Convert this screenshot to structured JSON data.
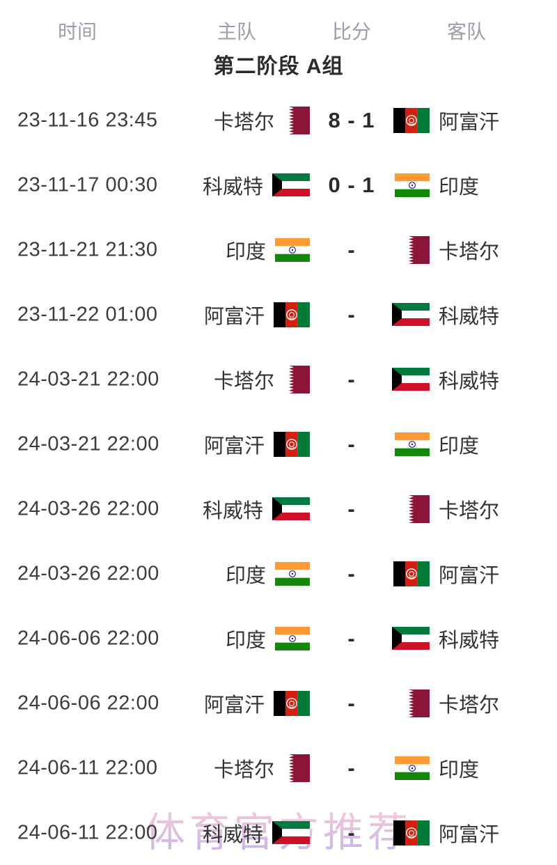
{
  "table": {
    "headers": [
      {
        "id": "time",
        "label": "时间"
      },
      {
        "id": "home",
        "label": "主队"
      },
      {
        "id": "score",
        "label": "比分"
      },
      {
        "id": "away",
        "label": "客队"
      }
    ],
    "section_title": "第二阶段 A组",
    "rows": [
      {
        "time": "23-11-16 23:45",
        "home": "卡塔尔",
        "home_flag": "qatar",
        "score": "8 - 1",
        "away": "阿富汗",
        "away_flag": "afghanistan"
      },
      {
        "time": "23-11-17 00:30",
        "home": "科威特",
        "home_flag": "kuwait",
        "score": "0 - 1",
        "away": "印度",
        "away_flag": "india"
      },
      {
        "time": "23-11-21 21:30",
        "home": "印度",
        "home_flag": "india",
        "score": "-",
        "away": "卡塔尔",
        "away_flag": "qatar"
      },
      {
        "time": "23-11-22 01:00",
        "home": "阿富汗",
        "home_flag": "afghanistan",
        "score": "-",
        "away": "科威特",
        "away_flag": "kuwait"
      },
      {
        "time": "24-03-21 22:00",
        "home": "卡塔尔",
        "home_flag": "qatar",
        "score": "-",
        "away": "科威特",
        "away_flag": "kuwait"
      },
      {
        "time": "24-03-21 22:00",
        "home": "阿富汗",
        "home_flag": "afghanistan",
        "score": "-",
        "away": "印度",
        "away_flag": "india"
      },
      {
        "time": "24-03-26 22:00",
        "home": "科威特",
        "home_flag": "kuwait",
        "score": "-",
        "away": "卡塔尔",
        "away_flag": "qatar"
      },
      {
        "time": "24-03-26 22:00",
        "home": "印度",
        "home_flag": "india",
        "score": "-",
        "away": "阿富汗",
        "away_flag": "afghanistan"
      },
      {
        "time": "24-06-06 22:00",
        "home": "印度",
        "home_flag": "india",
        "score": "-",
        "away": "科威特",
        "away_flag": "kuwait"
      },
      {
        "time": "24-06-06 22:00",
        "home": "阿富汗",
        "home_flag": "afghanistan",
        "score": "-",
        "away": "卡塔尔",
        "away_flag": "qatar"
      },
      {
        "time": "24-06-11 22:00",
        "home": "卡塔尔",
        "home_flag": "qatar",
        "score": "-",
        "away": "印度",
        "away_flag": "india"
      },
      {
        "time": "24-06-11 22:00",
        "home": "科威特",
        "home_flag": "kuwait",
        "score": "-",
        "away": "阿富汗",
        "away_flag": "afghanistan"
      }
    ]
  },
  "watermark": {
    "text": "体育官方推荐",
    "color_top": "#f6bccc",
    "color_bottom": "#b9a3e6"
  },
  "flags": {
    "qatar": {
      "label": "qatar-flag",
      "maroon": "#8a1538",
      "white": "#ffffff"
    },
    "kuwait": {
      "label": "kuwait-flag",
      "green": "#007a3d",
      "white": "#ffffff",
      "red": "#ce1126",
      "black": "#000000"
    },
    "india": {
      "label": "india-flag",
      "saffron": "#ff9933",
      "white": "#ffffff",
      "green": "#138808",
      "navy": "#000088"
    },
    "afghanistan": {
      "label": "afghanistan-flag",
      "black": "#000000",
      "red": "#d32011",
      "green": "#007a36",
      "white": "#ffffff"
    }
  },
  "colors": {
    "background": "#ffffff",
    "header_text": "#9a9ea6",
    "title_text": "#2b2b2b",
    "time_text": "#3c3c3c",
    "team_text": "#333333",
    "score_text": "#2b2b2b"
  }
}
